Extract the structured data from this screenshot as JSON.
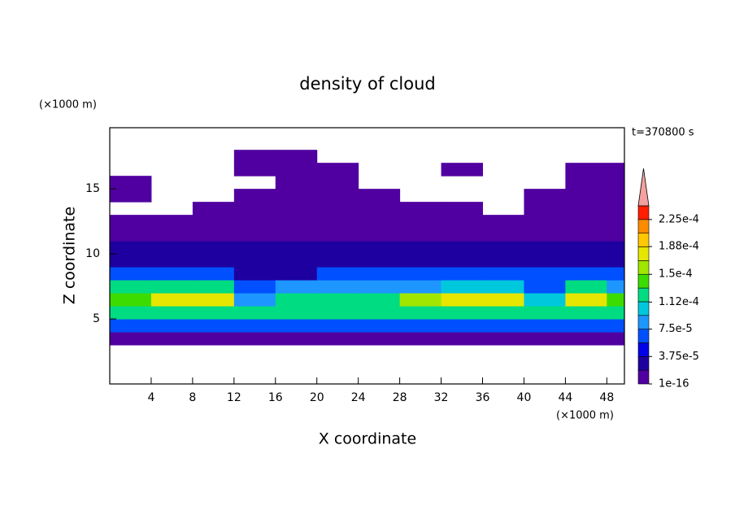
{
  "chart_data": {
    "type": "contour",
    "title": "density of cloud",
    "x_label": "X coordinate",
    "y_label": "Z coordinate",
    "x_unit": "(×1000 m)",
    "y_unit": "(×1000 m)",
    "annotation": "t=370800 s",
    "xlim": [
      0,
      49.7
    ],
    "ylim": [
      0,
      19.7
    ],
    "xticks": [
      4,
      8,
      12,
      16,
      20,
      24,
      28,
      32,
      36,
      40,
      44,
      48
    ],
    "yticks": [
      5,
      10,
      15
    ],
    "x": [
      2,
      6,
      10,
      14,
      18,
      22,
      26,
      30,
      34,
      38,
      42,
      46,
      50
    ],
    "z": [
      3.5,
      4.5,
      5.5,
      6.5,
      7.5,
      8.5,
      9.5,
      10.5,
      11.5,
      12.5,
      13.5,
      14.5,
      15.5,
      16.5,
      17.5
    ],
    "values": [
      [
        1e-05,
        1e-05,
        1e-05,
        1e-05,
        1e-05,
        1e-05,
        1e-05,
        1e-05,
        1e-05,
        1e-05,
        1e-05,
        1e-05,
        1e-05
      ],
      [
        6e-05,
        6e-05,
        6e-05,
        6e-05,
        6e-05,
        6e-05,
        6e-05,
        6e-05,
        6e-05,
        6e-05,
        6e-05,
        6e-05,
        6e-05
      ],
      [
        0.00012,
        0.00013,
        0.00013,
        0.00012,
        0.00012,
        0.00012,
        0.00012,
        0.00012,
        0.00013,
        0.00013,
        0.00012,
        0.00013,
        0.00012
      ],
      [
        0.00014,
        0.00017,
        0.00017,
        8e-05,
        0.00013,
        0.00013,
        0.00013,
        0.00015,
        0.00017,
        0.00017,
        0.0001,
        0.00017,
        0.00014
      ],
      [
        0.00012,
        0.00012,
        0.00012,
        7e-05,
        8e-05,
        8e-05,
        8e-05,
        8e-05,
        0.0001,
        0.0001,
        7e-05,
        0.00012,
        9e-05
      ],
      [
        6e-05,
        6e-05,
        6e-05,
        3e-05,
        3e-05,
        6e-05,
        6e-05,
        6e-05,
        6e-05,
        6e-05,
        6e-05,
        6e-05,
        6e-05
      ],
      [
        3e-05,
        3e-05,
        3e-05,
        3e-05,
        3e-05,
        3e-05,
        3e-05,
        3e-05,
        3e-05,
        3e-05,
        3e-05,
        3e-05,
        3e-05
      ],
      [
        2e-05,
        2e-05,
        2e-05,
        2e-05,
        2e-05,
        2e-05,
        2e-05,
        2e-05,
        2e-05,
        2e-05,
        2e-05,
        2e-05,
        2e-05
      ],
      [
        1e-05,
        1e-05,
        1e-05,
        1e-05,
        1e-05,
        1e-05,
        1e-05,
        1e-05,
        1e-05,
        1e-05,
        1e-05,
        1e-05,
        1e-05
      ],
      [
        1e-05,
        1e-05,
        1e-05,
        1e-05,
        1e-05,
        1e-05,
        1e-05,
        1e-05,
        1e-05,
        1e-05,
        1e-05,
        1e-05,
        1e-05
      ],
      [
        null,
        null,
        1e-05,
        1e-05,
        1e-05,
        1e-05,
        1e-05,
        1e-05,
        1e-05,
        null,
        1e-05,
        1e-05,
        1e-05
      ],
      [
        1e-05,
        null,
        null,
        1e-05,
        1e-05,
        1e-05,
        1e-05,
        null,
        null,
        null,
        1e-05,
        1e-05,
        1e-05
      ],
      [
        1e-05,
        null,
        null,
        null,
        1e-05,
        1e-05,
        null,
        null,
        null,
        null,
        null,
        1e-05,
        1e-05
      ],
      [
        null,
        null,
        null,
        1e-05,
        1e-05,
        1e-05,
        null,
        null,
        1e-05,
        null,
        null,
        1e-05,
        1e-05
      ],
      [
        null,
        null,
        null,
        1e-05,
        1e-05,
        null,
        null,
        null,
        null,
        null,
        null,
        null,
        null
      ]
    ],
    "levels": [
      1e-16,
      1.875e-05,
      3.75e-05,
      5.625e-05,
      7.5e-05,
      9.375e-05,
      0.0001125,
      0.00013125,
      0.00015,
      0.00016875,
      0.0001875,
      0.00020625,
      0.000225,
      0.00024375
    ],
    "colors": [
      "#5000a0",
      "#1e00a0",
      "#0000e6",
      "#0050ff",
      "#1e96ff",
      "#00c8dc",
      "#00dc82",
      "#3cdc00",
      "#a0e600",
      "#e6e600",
      "#ffc800",
      "#ff8c00",
      "#ff1e00"
    ],
    "extend_color": "#f4a0a0",
    "colorbar_ticks": [
      {
        "value": 1e-16,
        "label": "1e-16"
      },
      {
        "value": 3.75e-05,
        "label": "3.75e-5"
      },
      {
        "value": 7.5e-05,
        "label": "7.5e-5"
      },
      {
        "value": 0.000112,
        "label": "1.12e-4"
      },
      {
        "value": 0.00015,
        "label": "1.5e-4"
      },
      {
        "value": 0.000188,
        "label": "1.88e-4"
      },
      {
        "value": 0.000225,
        "label": "2.25e-4"
      }
    ]
  }
}
